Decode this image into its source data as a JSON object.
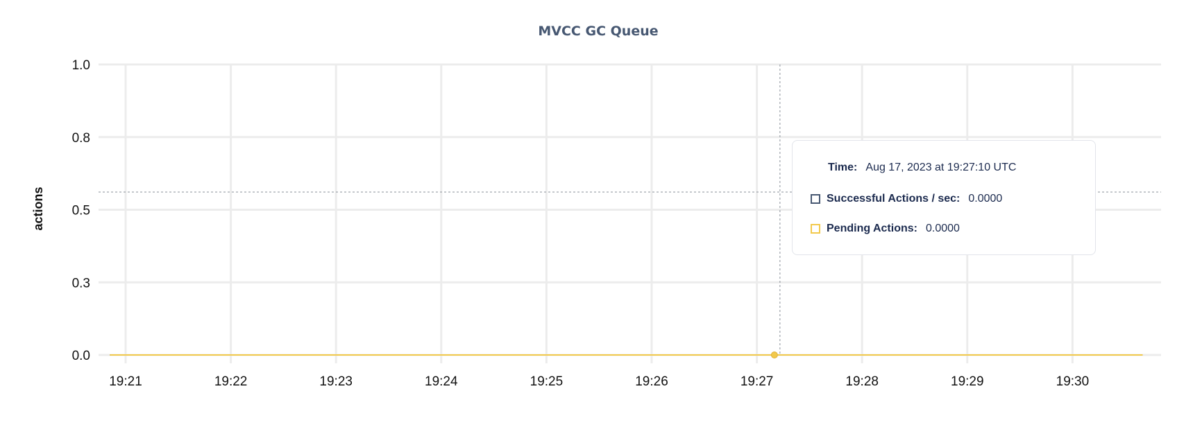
{
  "chart_data": {
    "type": "line",
    "title": "MVCC GC Queue",
    "ylabel": "actions",
    "xlabel": "",
    "ylim": [
      0,
      1
    ],
    "y_ticks": [
      0,
      0.25,
      0.5,
      0.75,
      1.0
    ],
    "y_tick_labels": [
      "0.0",
      "0.3",
      "0.5",
      "0.8",
      "1.0"
    ],
    "x_tick_labels": [
      "19:21",
      "19:22",
      "19:23",
      "19:24",
      "19:25",
      "19:26",
      "19:27",
      "19:28",
      "19:29",
      "19:30"
    ],
    "x_range": [
      "19:20:51",
      "19:30:40"
    ],
    "grid": true,
    "series": [
      {
        "name": "Successful Actions / sec",
        "color": "#475872",
        "x": [
          "19:20:51",
          "19:30:40"
        ],
        "values": [
          0,
          0
        ]
      },
      {
        "name": "Pending Actions",
        "color": "#f2c94c",
        "x": [
          "19:20:51",
          "19:30:40"
        ],
        "values": [
          0,
          0
        ]
      }
    ],
    "hover": {
      "time": "19:27:10",
      "value": 0
    }
  },
  "tooltip": {
    "time_label": "Time:",
    "time_value": "Aug 17, 2023 at 19:27:10 UTC",
    "rows": [
      {
        "label": "Successful Actions / sec:",
        "value": "0.0000",
        "color": "#475872"
      },
      {
        "label": "Pending Actions:",
        "value": "0.0000",
        "color": "#f2c94c"
      }
    ]
  }
}
